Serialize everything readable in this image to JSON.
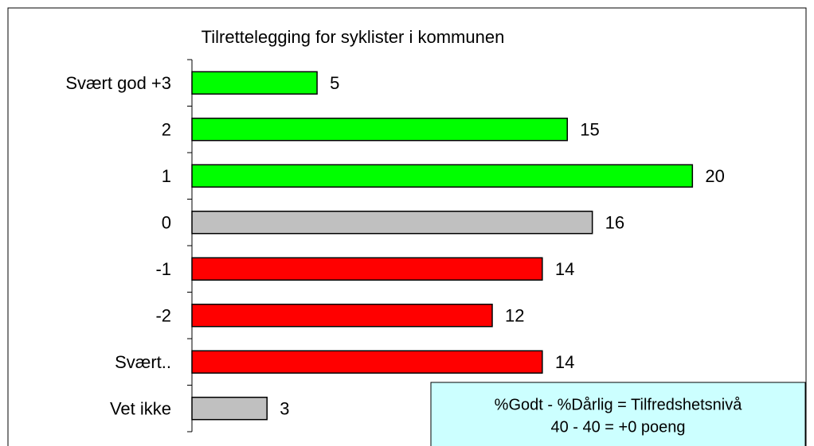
{
  "chart_data": {
    "type": "bar",
    "orientation": "horizontal",
    "title": "Tilrettelegging for syklister i kommunen",
    "categories": [
      "Svært god +3",
      "2",
      "1",
      "0",
      "-1",
      "-2",
      "Svært..",
      "Vet ikke"
    ],
    "values": [
      5,
      15,
      20,
      16,
      14,
      12,
      14,
      3
    ],
    "colors": [
      "#00ff00",
      "#00ff00",
      "#00ff00",
      "#c0c0c0",
      "#ff0000",
      "#ff0000",
      "#ff0000",
      "#c0c0c0"
    ],
    "xlim": [
      0,
      24
    ],
    "annotation": [
      "%Godt - %Dårlig = Tilfredshetsnivå",
      "40 - 40 =  +0 poeng"
    ]
  }
}
